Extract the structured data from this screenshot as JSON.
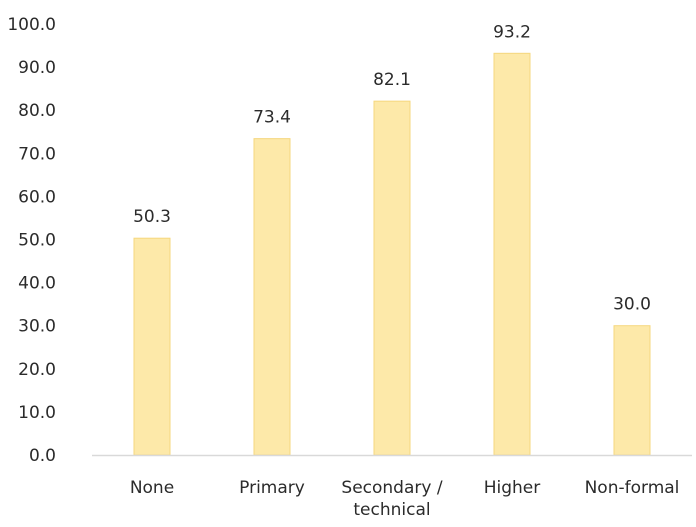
{
  "chart_data": {
    "type": "bar",
    "categories": [
      "None",
      "Primary",
      "Secondary / technical",
      "Higher",
      "Non-formal"
    ],
    "category_lines": [
      [
        "None"
      ],
      [
        "Primary"
      ],
      [
        "Secondary /",
        "technical"
      ],
      [
        "Higher"
      ],
      [
        "Non-formal"
      ]
    ],
    "values": [
      50.3,
      73.4,
      82.1,
      93.2,
      30.0
    ],
    "data_labels": [
      "50.3",
      "73.4",
      "82.1",
      "93.2",
      "30.0"
    ],
    "y_ticks": [
      0,
      10,
      20,
      30,
      40,
      50,
      60,
      70,
      80,
      90,
      100
    ],
    "y_tick_labels": [
      "0.0",
      "10.0",
      "20.0",
      "30.0",
      "40.0",
      "50.0",
      "60.0",
      "70.0",
      "80.0",
      "90.0",
      "100.0"
    ],
    "ylim": [
      0,
      100
    ],
    "grid": false,
    "legend": "none",
    "bar_color": "#fde9a9",
    "bar_edge_color": "#f5d77e",
    "axis_color": "#d9d9d9",
    "text_color": "#2b2b2b"
  }
}
